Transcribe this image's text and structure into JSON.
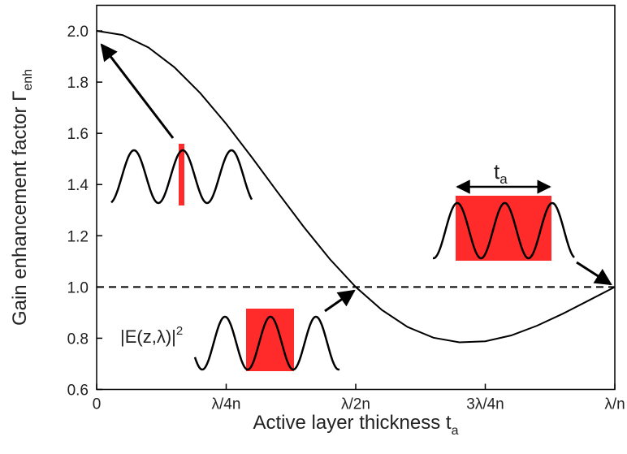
{
  "chart_data": {
    "type": "line",
    "ylabel": {
      "text": "Gain enhancement factor Γ",
      "sub": "enh"
    },
    "xlabel": {
      "text": "Active layer thickness t",
      "sub": "a"
    },
    "x": [
      0,
      0.05,
      0.1,
      0.15,
      0.2,
      0.25,
      0.3,
      0.35,
      0.4,
      0.45,
      0.5,
      0.55,
      0.6,
      0.65,
      0.7,
      0.75,
      0.8,
      0.85,
      0.9,
      0.95,
      1.0
    ],
    "series": [
      {
        "color": "#000000",
        "values": [
          2.0,
          1.984,
          1.935,
          1.858,
          1.757,
          1.637,
          1.505,
          1.368,
          1.234,
          1.109,
          1.0,
          0.911,
          0.844,
          0.802,
          0.784,
          0.788,
          0.811,
          0.849,
          0.896,
          0.948,
          1.0
        ]
      }
    ],
    "reference_line": 1,
    "xlim": [
      0,
      1
    ],
    "xticks": [
      0,
      {
        "value": 0.25,
        "label": "λ/4n"
      },
      {
        "value": 0.5,
        "label": "λ/2n"
      },
      {
        "value": 0.75,
        "label": "3λ/4n"
      },
      {
        "value": 1,
        "label": "λ/n"
      }
    ],
    "ylim": [
      0.6,
      2.1
    ],
    "yticks": [
      0.6,
      0.8,
      {
        "value": 1,
        "label": "1.0"
      },
      1.2,
      1.4,
      1.6,
      1.8,
      {
        "value": 2,
        "label": "2.0"
      }
    ],
    "annotations": {
      "field": {
        "text": "|E(z,λ)|",
        "sup": "2"
      },
      "thickness": {
        "text": "t",
        "sub": "a"
      }
    }
  }
}
